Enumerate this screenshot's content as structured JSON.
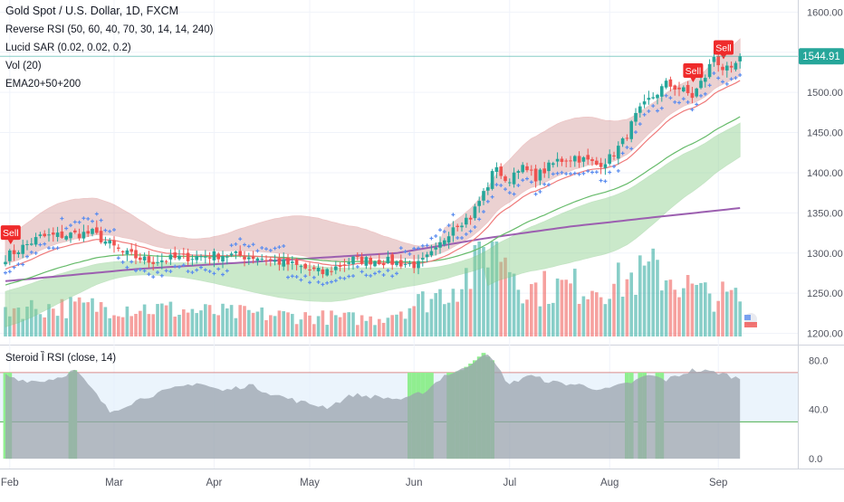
{
  "header": {
    "symbol_line": "Gold Spot / U.S. Dollar, 1D, FXCM",
    "indicators": [
      "Reverse RSI (50, 60, 40, 70, 30, 14, 14, 240)",
      "Lucid SAR (0.02, 0.02, 0.2)",
      "Vol (20)",
      "EMA20+50+200"
    ]
  },
  "lower_pane": {
    "title": "Steroid Ȉ RSI (close, 14)"
  },
  "price_badge": "1544.91",
  "sell_labels": [
    "Sell",
    "Sell",
    "Sell"
  ],
  "colors": {
    "up": "#26a69a",
    "down": "#ef5350",
    "sar": "#5b8def",
    "ema20": "#ef7a7a",
    "ema50": "#66bb6a",
    "ema200": "#9c5fb0",
    "rsi_gray": "#9aa3ad",
    "rsi_green": "#90ee90",
    "upper_band": "#d49a9a",
    "lower_band": "#8ccf8c",
    "axis_text": "#50535e",
    "grid": "#f0f3fa"
  },
  "chart_data": [
    {
      "type": "candlestick",
      "title": "Gold Spot / U.S. Dollar, 1D, FXCM",
      "x_tick_labels": [
        "Feb",
        "Mar",
        "Apr",
        "May",
        "Jun",
        "Jul",
        "Aug",
        "Sep"
      ],
      "y_tick_labels": [
        "1600.00",
        "1550.00",
        "1500.00",
        "1450.00",
        "1400.00",
        "1350.00",
        "1300.00",
        "1250.00",
        "1200.00"
      ],
      "ylim": [
        1186,
        1615
      ],
      "last_price": 1544.91,
      "close_anchors": [
        [
          0,
          1295
        ],
        [
          8,
          1320
        ],
        [
          20,
          1325
        ],
        [
          27,
          1300
        ],
        [
          33,
          1290
        ],
        [
          42,
          1295
        ],
        [
          50,
          1298
        ],
        [
          58,
          1295
        ],
        [
          66,
          1285
        ],
        [
          73,
          1275
        ],
        [
          80,
          1292
        ],
        [
          87,
          1290
        ],
        [
          95,
          1285
        ],
        [
          99,
          1302
        ],
        [
          103,
          1335
        ],
        [
          107,
          1345
        ],
        [
          111,
          1385
        ],
        [
          113,
          1410
        ],
        [
          115,
          1385
        ],
        [
          118,
          1408
        ],
        [
          122,
          1395
        ],
        [
          127,
          1415
        ],
        [
          131,
          1420
        ],
        [
          136,
          1410
        ],
        [
          139,
          1418
        ],
        [
          142,
          1438
        ],
        [
          145,
          1470
        ],
        [
          148,
          1490
        ],
        [
          152,
          1510
        ],
        [
          155,
          1505
        ],
        [
          158,
          1495
        ],
        [
          161,
          1520
        ],
        [
          163,
          1545
        ],
        [
          165,
          1530
        ],
        [
          167,
          1525
        ],
        [
          169,
          1544.91
        ]
      ],
      "ema_200": [
        [
          0,
          1265
        ],
        [
          30,
          1280
        ],
        [
          60,
          1290
        ],
        [
          90,
          1300
        ],
        [
          110,
          1318
        ],
        [
          130,
          1333
        ],
        [
          150,
          1345
        ],
        [
          169,
          1356
        ]
      ],
      "volume_axis_max": 100,
      "volume_anchors": [
        [
          0,
          30
        ],
        [
          25,
          32
        ],
        [
          50,
          25
        ],
        [
          85,
          18
        ],
        [
          100,
          45
        ],
        [
          108,
          70
        ],
        [
          112,
          110
        ],
        [
          120,
          50
        ],
        [
          140,
          55
        ],
        [
          150,
          70
        ],
        [
          160,
          45
        ],
        [
          169,
          40
        ]
      ],
      "signals": [
        {
          "label": "Sell",
          "day": 1
        },
        {
          "label": "Sell",
          "day": 158
        },
        {
          "label": "Sell",
          "day": 165
        }
      ]
    },
    {
      "type": "area",
      "title": "Steroid Ȉ RSI (close, 14)",
      "y_tick_labels": [
        "80.0",
        "40.0",
        "0.0"
      ],
      "ylim": [
        -8,
        92
      ],
      "levels": [
        70,
        30
      ],
      "rsi_anchors": [
        [
          0,
          68
        ],
        [
          4,
          64
        ],
        [
          8,
          63
        ],
        [
          12,
          66
        ],
        [
          16,
          72
        ],
        [
          20,
          56
        ],
        [
          24,
          38
        ],
        [
          28,
          44
        ],
        [
          32,
          50
        ],
        [
          38,
          56
        ],
        [
          44,
          62
        ],
        [
          50,
          55
        ],
        [
          56,
          60
        ],
        [
          62,
          52
        ],
        [
          68,
          46
        ],
        [
          74,
          42
        ],
        [
          80,
          52
        ],
        [
          86,
          50
        ],
        [
          92,
          48
        ],
        [
          97,
          56
        ],
        [
          101,
          68
        ],
        [
          105,
          72
        ],
        [
          108,
          80
        ],
        [
          110,
          86
        ],
        [
          112,
          80
        ],
        [
          116,
          60
        ],
        [
          120,
          68
        ],
        [
          126,
          62
        ],
        [
          132,
          60
        ],
        [
          138,
          56
        ],
        [
          144,
          62
        ],
        [
          148,
          68
        ],
        [
          152,
          64
        ],
        [
          158,
          72
        ],
        [
          164,
          70
        ],
        [
          169,
          65
        ]
      ],
      "overbought_bars": [
        0,
        1,
        15,
        16,
        93,
        94,
        95,
        96,
        97,
        98,
        102,
        103,
        104,
        105,
        106,
        107,
        108,
        109,
        110,
        111,
        112,
        143,
        144,
        146,
        147,
        150,
        151
      ]
    }
  ]
}
